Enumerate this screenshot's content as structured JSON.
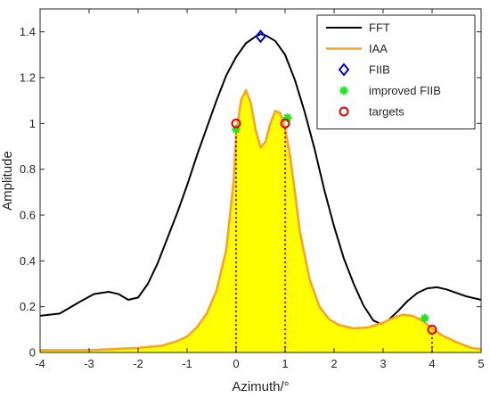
{
  "chart_data": {
    "type": "line",
    "xlabel": "Azimuth/°",
    "ylabel": "Amplitude",
    "xlim": [
      -4,
      5
    ],
    "ylim": [
      0,
      1.5
    ],
    "xticks": [
      -4,
      -3,
      -2,
      -1,
      0,
      1,
      2,
      3,
      4,
      5
    ],
    "yticks": [
      0,
      0.2,
      0.4,
      0.6,
      0.8,
      1,
      1.2,
      1.4
    ],
    "grid": false,
    "legend_position": "top-right",
    "series": [
      {
        "name": "FFT",
        "kind": "line",
        "color": "#000000",
        "x": [
          -4.0,
          -3.6,
          -3.2,
          -2.9,
          -2.6,
          -2.4,
          -2.2,
          -2.0,
          -1.8,
          -1.6,
          -1.4,
          -1.2,
          -1.0,
          -0.8,
          -0.6,
          -0.4,
          -0.2,
          0.0,
          0.2,
          0.4,
          0.5,
          0.6,
          0.8,
          1.0,
          1.2,
          1.4,
          1.6,
          1.8,
          2.0,
          2.2,
          2.4,
          2.6,
          2.8,
          2.95,
          3.1,
          3.3,
          3.5,
          3.7,
          3.9,
          4.1,
          4.3,
          4.5,
          4.7,
          5.0
        ],
        "y": [
          0.16,
          0.17,
          0.22,
          0.255,
          0.265,
          0.255,
          0.23,
          0.24,
          0.3,
          0.39,
          0.5,
          0.61,
          0.73,
          0.86,
          0.98,
          1.1,
          1.21,
          1.29,
          1.35,
          1.38,
          1.39,
          1.385,
          1.36,
          1.3,
          1.19,
          1.05,
          0.89,
          0.71,
          0.55,
          0.41,
          0.3,
          0.205,
          0.14,
          0.125,
          0.14,
          0.18,
          0.225,
          0.26,
          0.28,
          0.285,
          0.275,
          0.26,
          0.245,
          0.23
        ]
      },
      {
        "name": "IAA",
        "kind": "filled-line",
        "color": "#F5A623",
        "fill": "#FFFF00",
        "x": [
          -4.0,
          -3.0,
          -2.0,
          -1.5,
          -1.2,
          -1.0,
          -0.8,
          -0.6,
          -0.4,
          -0.2,
          -0.05,
          0.0,
          0.1,
          0.2,
          0.3,
          0.4,
          0.5,
          0.6,
          0.7,
          0.8,
          0.9,
          1.0,
          1.1,
          1.2,
          1.3,
          1.5,
          1.7,
          1.9,
          2.1,
          2.4,
          2.7,
          3.0,
          3.2,
          3.4,
          3.6,
          3.8,
          4.0,
          4.2,
          4.5,
          4.8,
          5.0
        ],
        "y": [
          0.01,
          0.01,
          0.02,
          0.03,
          0.05,
          0.07,
          0.11,
          0.17,
          0.27,
          0.45,
          0.75,
          0.95,
          1.1,
          1.145,
          1.09,
          0.97,
          0.895,
          0.92,
          1.0,
          1.055,
          1.045,
          0.98,
          0.86,
          0.7,
          0.53,
          0.32,
          0.2,
          0.145,
          0.12,
          0.105,
          0.11,
          0.13,
          0.15,
          0.165,
          0.16,
          0.14,
          0.105,
          0.075,
          0.045,
          0.02,
          0.015
        ]
      },
      {
        "name": "FIIB",
        "kind": "markers",
        "marker": "diamond",
        "color": "#0000CC",
        "points": [
          [
            0.5,
            1.38
          ]
        ]
      },
      {
        "name": "improved FIIB",
        "kind": "markers",
        "marker": "asterisk",
        "color": "#22E622",
        "points": [
          [
            0.0,
            0.975
          ],
          [
            1.05,
            1.025
          ],
          [
            3.85,
            0.15
          ]
        ]
      },
      {
        "name": "targets",
        "kind": "markers",
        "marker": "circle",
        "color": "#E00000",
        "points": [
          [
            0.0,
            1.0
          ],
          [
            1.0,
            1.0
          ],
          [
            4.0,
            0.1
          ]
        ]
      }
    ],
    "target_stems": {
      "color": "#CC0000",
      "style": "dotted",
      "x": [
        0.0,
        1.0,
        4.0
      ]
    }
  }
}
